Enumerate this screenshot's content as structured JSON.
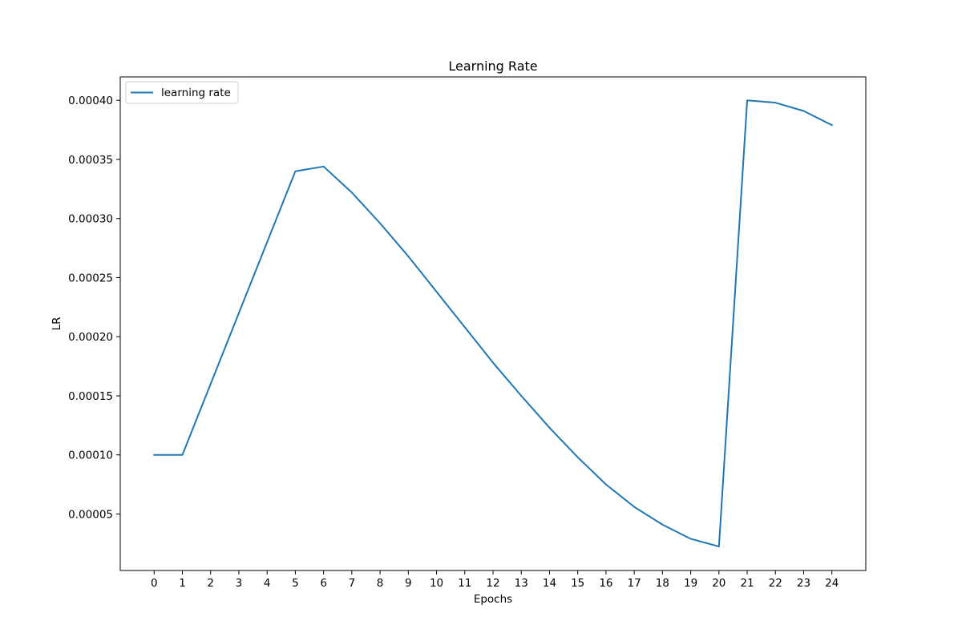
{
  "chart_data": {
    "type": "line",
    "title": "Learning Rate",
    "xlabel": "Epochs",
    "ylabel": "LR",
    "x": [
      0,
      1,
      2,
      3,
      4,
      5,
      6,
      7,
      8,
      9,
      10,
      11,
      12,
      13,
      14,
      15,
      16,
      17,
      18,
      19,
      20,
      21,
      22,
      23,
      24
    ],
    "x_ticks": [
      "0",
      "1",
      "2",
      "3",
      "4",
      "5",
      "6",
      "7",
      "8",
      "9",
      "10",
      "11",
      "12",
      "13",
      "14",
      "15",
      "16",
      "17",
      "18",
      "19",
      "20",
      "21",
      "22",
      "23",
      "24"
    ],
    "y_ticks": [
      "0.00005",
      "0.00010",
      "0.00015",
      "0.00020",
      "0.00025",
      "0.00030",
      "0.00035",
      "0.00040"
    ],
    "y_tick_values": [
      5e-05,
      0.0001,
      0.00015,
      0.0002,
      0.00025,
      0.0003,
      0.00035,
      0.0004
    ],
    "xlim": [
      -1.2,
      25.2
    ],
    "ylim": [
      2.2e-06,
      0.0004198
    ],
    "grid": false,
    "legend_position": "upper left",
    "series": [
      {
        "name": "learning rate",
        "color": "#1f77b4",
        "values": [
          0.0001,
          0.0001,
          0.00016,
          0.00022,
          0.00028,
          0.00034,
          0.000344,
          0.000322,
          0.000296,
          0.000268,
          0.000238,
          0.000208,
          0.000178,
          0.00015,
          0.000123,
          9.8e-05,
          7.5e-05,
          5.6e-05,
          4.1e-05,
          2.9e-05,
          2.25e-05,
          0.0004,
          0.000398,
          0.000391,
          0.000379
        ]
      }
    ]
  }
}
